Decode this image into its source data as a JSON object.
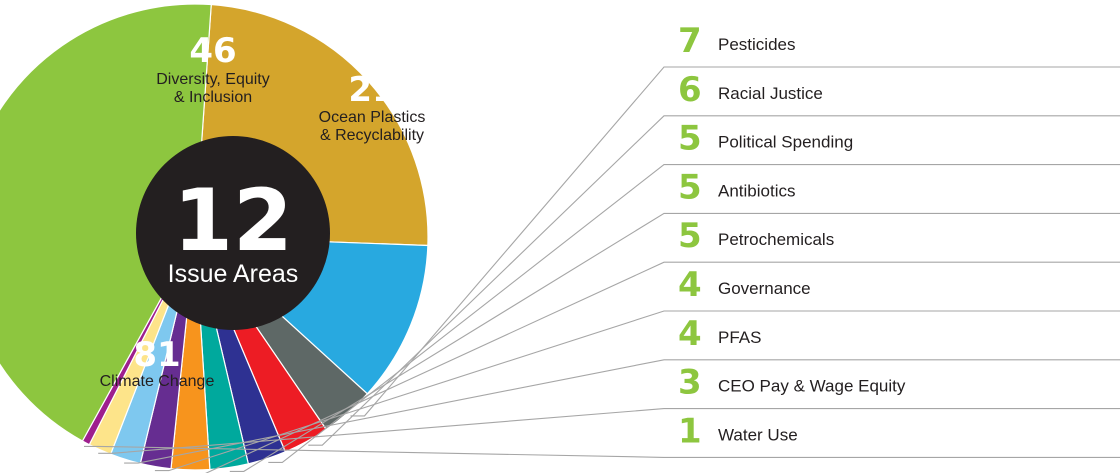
{
  "chart_data": {
    "type": "pie",
    "title": "",
    "center_label": {
      "value": "12",
      "text": "Issue Areas"
    },
    "slices": [
      {
        "label": "Diversity, Equity & Inclusion",
        "label_lines": [
          "Diversity, Equity",
          "& Inclusion"
        ],
        "value": 46,
        "color": "#D4A52C",
        "callout": "inside"
      },
      {
        "label": "Ocean Plastics & Recyclability",
        "label_lines": [
          "Ocean Plastics",
          "& Recyclability"
        ],
        "value": 21,
        "color": "#28A9E0",
        "callout": "inside"
      },
      {
        "label": "Pesticides",
        "value": 7,
        "color": "#5E6866",
        "callout": "legend"
      },
      {
        "label": "Racial Justice",
        "value": 6,
        "color": "#ED1C24",
        "callout": "legend"
      },
      {
        "label": "Political Spending",
        "value": 5,
        "color": "#2E3192",
        "callout": "legend"
      },
      {
        "label": "Antibiotics",
        "value": 5,
        "color": "#00A99D",
        "callout": "legend"
      },
      {
        "label": "Petrochemicals",
        "value": 5,
        "color": "#F7941D",
        "callout": "legend"
      },
      {
        "label": "Governance",
        "value": 4,
        "color": "#662D91",
        "callout": "legend"
      },
      {
        "label": "PFAS",
        "value": 4,
        "color": "#7EC8EF",
        "callout": "legend"
      },
      {
        "label": "CEO Pay & Wage Equity",
        "value": 3,
        "color": "#FDE48A",
        "callout": "legend"
      },
      {
        "label": "Water Use",
        "value": 1,
        "color": "#9E1F8E",
        "callout": "legend"
      },
      {
        "label": "Climate Change",
        "value": 81,
        "color": "#8DC63F",
        "callout": "inside"
      }
    ]
  },
  "style": {
    "number_accent": "#8DC63F",
    "leader_line": "#A6A6A6",
    "center_fill": "#231F20",
    "text_dark": "#231F20"
  }
}
